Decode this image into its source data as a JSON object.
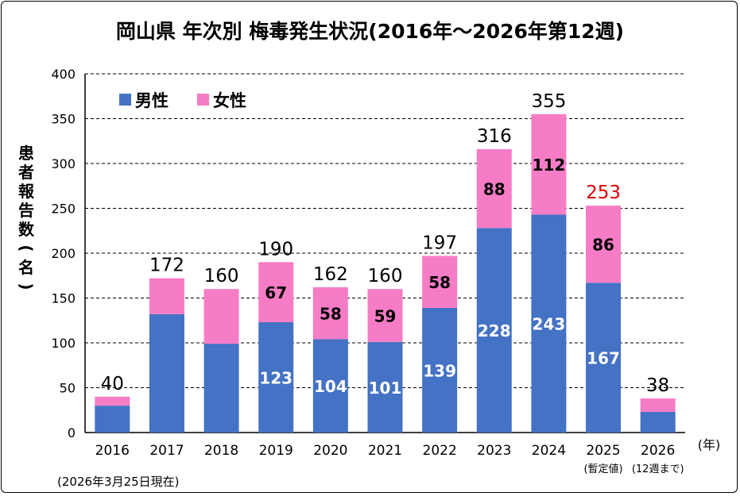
{
  "chart_data": {
    "type": "bar",
    "stacked": true,
    "title": "岡山県 年次別 梅毒発生状況(2016年～2026年第12週)",
    "ylabel": "患者報告数(名)",
    "xlabel": "(年)",
    "ylim": [
      0,
      400
    ],
    "yticks": [
      0,
      50,
      100,
      150,
      200,
      250,
      300,
      350,
      400
    ],
    "grid": true,
    "legend_placement": "top-left",
    "categories": [
      "2016",
      "2017",
      "2018",
      "2019",
      "2020",
      "2021",
      "2022",
      "2023",
      "2024",
      "2025",
      "2026"
    ],
    "category_sublabels": [
      "",
      "",
      "",
      "",
      "",
      "",
      "",
      "",
      "",
      "(暫定値)",
      "(12週まで)"
    ],
    "series": [
      {
        "name": "男性",
        "color": "#4472C4",
        "values": [
          30,
          132,
          99,
          123,
          104,
          101,
          139,
          228,
          243,
          167,
          23
        ],
        "labeled": [
          false,
          false,
          false,
          true,
          true,
          true,
          true,
          true,
          true,
          true,
          false
        ]
      },
      {
        "name": "女性",
        "color": "#F77CC6",
        "values": [
          10,
          40,
          61,
          67,
          58,
          59,
          58,
          88,
          112,
          86,
          15
        ],
        "labeled": [
          false,
          false,
          false,
          true,
          true,
          true,
          true,
          true,
          true,
          true,
          false
        ]
      }
    ],
    "totals": [
      40,
      172,
      160,
      190,
      162,
      160,
      197,
      316,
      355,
      253,
      38
    ],
    "highlight_total_color": {
      "2025": "#E00000"
    },
    "note": "(2026年3月25日現在)"
  }
}
